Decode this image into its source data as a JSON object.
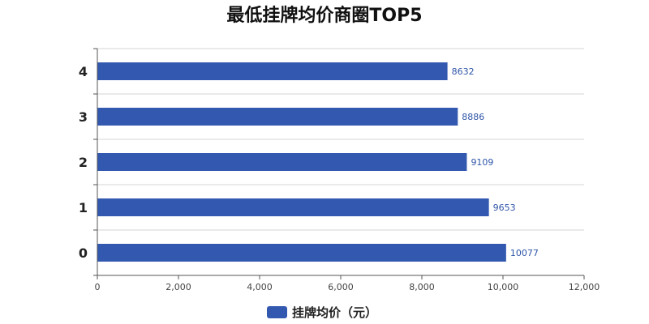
{
  "chart_data": {
    "type": "bar",
    "orientation": "horizontal",
    "title": "最低挂牌均价商圈TOP5",
    "categories": [
      "0",
      "1",
      "2",
      "3",
      "4"
    ],
    "series": [
      {
        "name": "挂牌均价（元）",
        "values": [
          10077,
          9653,
          9109,
          8886,
          8632
        ]
      }
    ],
    "x_ticks": [
      "0",
      "2,000",
      "4,000",
      "6,000",
      "8,000",
      "10,000",
      "12,000"
    ],
    "xlim": [
      0,
      12000
    ],
    "grid": "horizontal",
    "legend_position": "bottom",
    "bar_color": "#3358b0",
    "label_color": "#2f55a8"
  }
}
